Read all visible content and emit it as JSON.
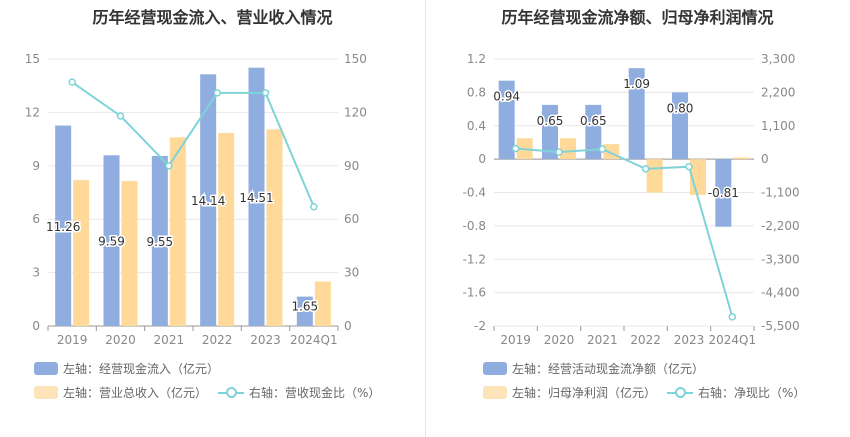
{
  "colors": {
    "bar_primary": "#8fadde",
    "bar_secondary": "#ffd99a",
    "line": "#7fd3d8",
    "grid": "#e8e8e8",
    "axis_text": "#888888"
  },
  "chart_data": [
    {
      "type": "bar",
      "title": "历年经营现金流入、营业收入情况",
      "categories": [
        "2019",
        "2020",
        "2021",
        "2022",
        "2023",
        "2024Q1"
      ],
      "left_axis": {
        "ticks": [
          "0",
          "3",
          "6",
          "9",
          "12",
          "15"
        ],
        "min": 0,
        "max": 15
      },
      "right_axis": {
        "ticks": [
          "0",
          "30",
          "60",
          "90",
          "120",
          "150"
        ],
        "min": 0,
        "max": 150
      },
      "series": [
        {
          "name": "左轴：经营现金流入（亿元）",
          "axis": "left",
          "kind": "bar",
          "values": [
            11.26,
            9.59,
            9.55,
            14.14,
            14.51,
            1.65
          ],
          "labels": [
            "11.26",
            "9.59",
            "9.55",
            "14.14",
            "14.51",
            "1.65"
          ]
        },
        {
          "name": "左轴：营业总收入（亿元）",
          "axis": "left",
          "kind": "bar",
          "values": [
            8.2,
            8.15,
            10.6,
            10.85,
            11.05,
            2.5
          ]
        },
        {
          "name": "右轴：营收现金比（%）",
          "axis": "right",
          "kind": "line",
          "values": [
            137,
            118,
            90,
            131,
            131,
            67
          ]
        }
      ]
    },
    {
      "type": "bar",
      "title": "历年经营现金流净额、归母净利润情况",
      "categories": [
        "2019",
        "2020",
        "2021",
        "2022",
        "2023",
        "2024Q1"
      ],
      "left_axis": {
        "ticks": [
          "-2",
          "-1.6",
          "-1.2",
          "-0.8",
          "-0.4",
          "0",
          "0.4",
          "0.8",
          "1.2"
        ],
        "min": -2,
        "max": 1.2
      },
      "right_axis": {
        "ticks": [
          "-5,500",
          "-4,400",
          "-3,300",
          "-2,200",
          "-1,100",
          "0",
          "1,100",
          "2,200",
          "3,300"
        ],
        "min": -5500,
        "max": 3300
      },
      "series": [
        {
          "name": "左轴：经营活动现金流净额（亿元）",
          "axis": "left",
          "kind": "bar",
          "values": [
            0.94,
            0.65,
            0.65,
            1.09,
            0.8,
            -0.81
          ],
          "labels": [
            "0.94",
            "0.65",
            "0.65",
            "1.09",
            "0.80",
            "-0.81"
          ]
        },
        {
          "name": "左轴：归母净利润（亿元）",
          "axis": "left",
          "kind": "bar",
          "values": [
            0.25,
            0.25,
            0.18,
            -0.4,
            -0.43,
            0.02
          ]
        },
        {
          "name": "右轴：净现比（%）",
          "axis": "right",
          "kind": "line",
          "values": [
            350,
            230,
            330,
            -320,
            -250,
            -5200
          ]
        }
      ]
    }
  ]
}
